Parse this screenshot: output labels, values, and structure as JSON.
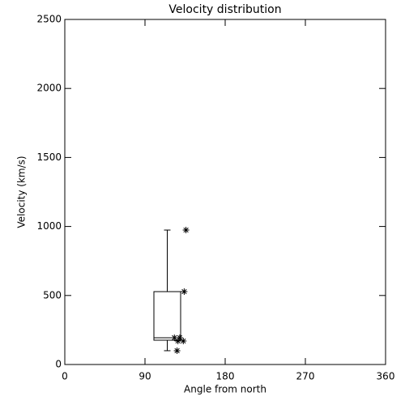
{
  "chart_data": {
    "type": "box",
    "title": "Velocity distribution",
    "x_label": "Angle from north",
    "y_label": "Velocity (km/s)",
    "xlim": [
      0,
      360
    ],
    "xticks": [
      0,
      90,
      180,
      270,
      360
    ],
    "ylim": [
      0,
      2500
    ],
    "yticks": [
      0,
      500,
      1000,
      1500,
      2000,
      2500
    ],
    "box": {
      "x_start": 100,
      "x_end": 130,
      "min": 100,
      "q1": 176,
      "median": 194,
      "q3": 528,
      "max": 974
    },
    "points": {
      "x": [
        136,
        134,
        123,
        129,
        133,
        127,
        126
      ],
      "y": [
        974,
        528,
        194,
        194,
        170,
        170,
        100
      ]
    },
    "color": "#000000"
  }
}
